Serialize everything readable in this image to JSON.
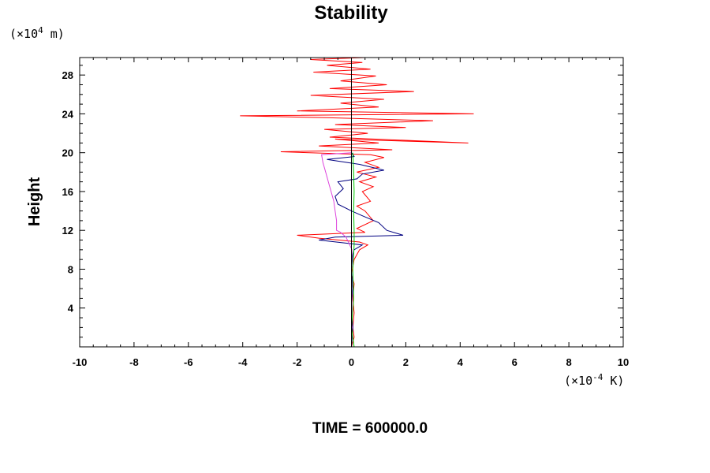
{
  "chart_data": {
    "type": "line",
    "title": "Stability",
    "ylabel": "Height",
    "xlabel": "",
    "y_unit": {
      "prefix": "(×10",
      "exp": "4",
      "suffix": " m)"
    },
    "x_unit": {
      "prefix": "(×10",
      "exp": "-4",
      "suffix": " K)"
    },
    "footer": "TIME = 600000.0",
    "xlim": [
      -10,
      10
    ],
    "ylim": [
      0,
      29.8
    ],
    "x_ticks": [
      -10,
      -8,
      -6,
      -4,
      -2,
      0,
      2,
      4,
      6,
      8,
      10
    ],
    "y_ticks": [
      4,
      8,
      12,
      16,
      20,
      24,
      28
    ],
    "grid": false,
    "legend": "none",
    "series": [
      {
        "color": "#ff0000",
        "points": [
          [
            0.0,
            0.0
          ],
          [
            0.1,
            1.0
          ],
          [
            0.05,
            2.0
          ],
          [
            0.1,
            3.5
          ],
          [
            0.05,
            5.0
          ],
          [
            0.1,
            6.5
          ],
          [
            0.0,
            7.5
          ],
          [
            0.1,
            9.0
          ],
          [
            0.3,
            10.0
          ],
          [
            0.6,
            10.5
          ],
          [
            0.3,
            10.8
          ],
          [
            -1.2,
            11.2
          ],
          [
            -2.0,
            11.5
          ],
          [
            0.5,
            11.8
          ],
          [
            0.2,
            12.2
          ],
          [
            0.8,
            13.0
          ],
          [
            0.5,
            14.0
          ],
          [
            0.2,
            14.5
          ],
          [
            0.7,
            15.0
          ],
          [
            0.4,
            16.0
          ],
          [
            0.8,
            16.5
          ],
          [
            0.3,
            17.0
          ],
          [
            0.9,
            17.5
          ],
          [
            0.2,
            18.0
          ],
          [
            1.0,
            18.5
          ],
          [
            0.5,
            19.0
          ],
          [
            1.2,
            19.5
          ],
          [
            0.7,
            19.8
          ],
          [
            -2.6,
            20.1
          ],
          [
            1.5,
            20.3
          ],
          [
            -1.2,
            20.7
          ],
          [
            1.0,
            21.0
          ],
          [
            -0.6,
            21.4
          ],
          [
            4.3,
            21.0
          ],
          [
            -0.8,
            21.6
          ],
          [
            0.6,
            22.0
          ],
          [
            -1.0,
            22.4
          ],
          [
            2.0,
            22.6
          ],
          [
            -0.6,
            22.9
          ],
          [
            3.0,
            23.3
          ],
          [
            -0.8,
            23.6
          ],
          [
            -4.1,
            23.8
          ],
          [
            4.5,
            24.0
          ],
          [
            -2.0,
            24.3
          ],
          [
            1.0,
            24.7
          ],
          [
            -0.4,
            25.1
          ],
          [
            1.2,
            25.5
          ],
          [
            -1.5,
            25.9
          ],
          [
            2.3,
            26.3
          ],
          [
            -0.8,
            26.6
          ],
          [
            1.3,
            27.0
          ],
          [
            -0.4,
            27.4
          ],
          [
            0.9,
            27.9
          ],
          [
            -1.4,
            28.3
          ],
          [
            0.7,
            28.6
          ],
          [
            -0.9,
            29.0
          ],
          [
            0.4,
            29.3
          ],
          [
            -1.5,
            29.6
          ],
          [
            0.5,
            29.8
          ]
        ]
      },
      {
        "color": "#000080",
        "points": [
          [
            0.0,
            0.0
          ],
          [
            0.05,
            2.0
          ],
          [
            0.0,
            4.0
          ],
          [
            0.05,
            6.0
          ],
          [
            0.0,
            8.0
          ],
          [
            0.05,
            9.5
          ],
          [
            0.1,
            10.0
          ],
          [
            0.4,
            10.5
          ],
          [
            -1.2,
            11.0
          ],
          [
            -0.6,
            11.3
          ],
          [
            1.9,
            11.5
          ],
          [
            1.3,
            12.0
          ],
          [
            1.0,
            12.8
          ],
          [
            0.4,
            13.5
          ],
          [
            0.0,
            14.0
          ],
          [
            -0.5,
            14.7
          ],
          [
            -0.6,
            15.5
          ],
          [
            -0.3,
            16.3
          ],
          [
            -0.5,
            17.0
          ],
          [
            0.2,
            17.3
          ],
          [
            0.4,
            17.8
          ],
          [
            1.2,
            18.2
          ],
          [
            0.3,
            18.8
          ],
          [
            -0.9,
            19.3
          ],
          [
            0.1,
            19.6
          ],
          [
            0.0,
            20.0
          ]
        ]
      },
      {
        "color": "#dd44dd",
        "points": [
          [
            0.0,
            0.0
          ],
          [
            0.02,
            4.0
          ],
          [
            0.0,
            8.0
          ],
          [
            0.02,
            10.0
          ],
          [
            -0.2,
            11.3
          ],
          [
            -0.4,
            11.8
          ],
          [
            -0.55,
            12.0
          ],
          [
            -0.55,
            13.0
          ],
          [
            -0.6,
            14.0
          ],
          [
            -0.65,
            15.0
          ],
          [
            -0.75,
            16.0
          ],
          [
            -0.85,
            17.0
          ],
          [
            -0.95,
            18.0
          ],
          [
            -1.05,
            19.0
          ],
          [
            -1.1,
            19.8
          ],
          [
            0.0,
            20.0
          ]
        ]
      },
      {
        "color": "#00cc00",
        "points": [
          [
            0.1,
            0.0
          ],
          [
            0.0,
            2.0
          ],
          [
            0.08,
            5.0
          ],
          [
            0.05,
            8.0
          ],
          [
            0.1,
            10.5
          ],
          [
            0.1,
            12.0
          ],
          [
            0.08,
            14.0
          ],
          [
            0.1,
            16.0
          ],
          [
            0.08,
            18.0
          ],
          [
            0.05,
            20.0
          ]
        ]
      },
      {
        "color": "#000000",
        "points": [
          [
            0.0,
            0.0
          ],
          [
            0.0,
            29.8
          ]
        ]
      }
    ]
  }
}
